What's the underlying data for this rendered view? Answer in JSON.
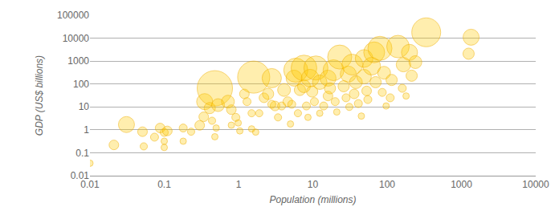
{
  "chart_data": {
    "type": "scatter",
    "marker": "circle",
    "x_label": "Population (millions)",
    "y_label": "GDP (US$ billions)",
    "log": true,
    "grid": true,
    "color": "#ffcc00",
    "xlim": [
      0.01,
      10000
    ],
    "xticks": [
      0.01,
      0.1,
      1,
      10,
      100,
      1000,
      10000
    ],
    "ylim": [
      0.01,
      100000
    ],
    "yticks": [
      0.01,
      0.1,
      1,
      10,
      100,
      1000,
      10000,
      100000
    ],
    "x": [
      0.01,
      0.021,
      0.031,
      0.051,
      0.053,
      0.074,
      0.088,
      0.1,
      0.1,
      0.1,
      0.11,
      0.18,
      0.18,
      0.23,
      0.3,
      0.34,
      0.35,
      0.41,
      0.48,
      0.53,
      0.44,
      0.5,
      0.48,
      0.72,
      0.8,
      0.92,
      0.99,
      1.04,
      0.8,
      1.2,
      1.3,
      1.6,
      1.5,
      1.7,
      1.5,
      1.9,
      2.2,
      2.5,
      2.8,
      3.1,
      3.4,
      2.8,
      4.1,
      3.8,
      4.6,
      5,
      5.2,
      5.6,
      5.9,
      6.3,
      6.7,
      7.6,
      7.6,
      8.2,
      9.2,
      9.8,
      8.6,
      10.5,
      11,
      12.4,
      12.4,
      14,
      16,
      16,
      17,
      19,
      20,
      21,
      23,
      26,
      28,
      30,
      31,
      34,
      36,
      38,
      41,
      45,
      49,
      49,
      53,
      55,
      62,
      67,
      70,
      80,
      86,
      91,
      97,
      110,
      115,
      140,
      166,
      200,
      214,
      240,
      160,
      180,
      336,
      1350,
      1250
    ],
    "y": [
      0.035,
      0.22,
      1.7,
      0.83,
      0.19,
      0.48,
      1.2,
      0.77,
      0.32,
      0.17,
      0.9,
      1.2,
      0.32,
      0.83,
      1.57,
      3.7,
      17,
      8.9,
      65,
      12,
      2.5,
      1.2,
      0.5,
      17,
      7.6,
      3.5,
      2,
      0.9,
      1.6,
      37,
      17,
      200,
      1.1,
      0.8,
      5.3,
      5.3,
      25,
      37,
      180,
      11,
      3.5,
      13,
      55,
      11,
      17,
      1.8,
      13,
      180,
      400,
      5.3,
      55,
      500,
      80,
      11,
      180,
      47,
      3.5,
      17,
      500,
      120,
      5.3,
      11,
      30,
      180,
      65,
      400,
      17,
      6,
      1500,
      80,
      25,
      270,
      10,
      700,
      37,
      120,
      14,
      4,
      210,
      1300,
      50,
      21,
      600,
      2400,
      120,
      3600,
      43,
      310,
      11,
      25,
      150,
      4300,
      700,
      2400,
      230,
      900,
      65,
      30,
      18000,
      11000,
      2100
    ],
    "sizes": [
      8,
      12,
      20,
      12,
      9,
      10,
      12,
      10,
      8,
      8,
      12,
      10,
      8,
      9,
      12,
      12,
      20,
      14,
      44,
      16,
      9,
      8,
      8,
      16,
      12,
      10,
      8,
      8,
      8,
      12,
      10,
      40,
      8,
      8,
      9,
      9,
      12,
      14,
      24,
      12,
      9,
      10,
      16,
      10,
      12,
      8,
      10,
      20,
      30,
      9,
      14,
      32,
      16,
      10,
      22,
      14,
      8,
      10,
      30,
      18,
      8,
      10,
      12,
      20,
      14,
      26,
      10,
      8,
      30,
      14,
      10,
      20,
      9,
      26,
      12,
      16,
      10,
      8,
      18,
      22,
      12,
      10,
      22,
      26,
      14,
      30,
      10,
      16,
      8,
      10,
      14,
      28,
      18,
      20,
      14,
      16,
      10,
      8,
      36,
      20,
      14
    ]
  }
}
